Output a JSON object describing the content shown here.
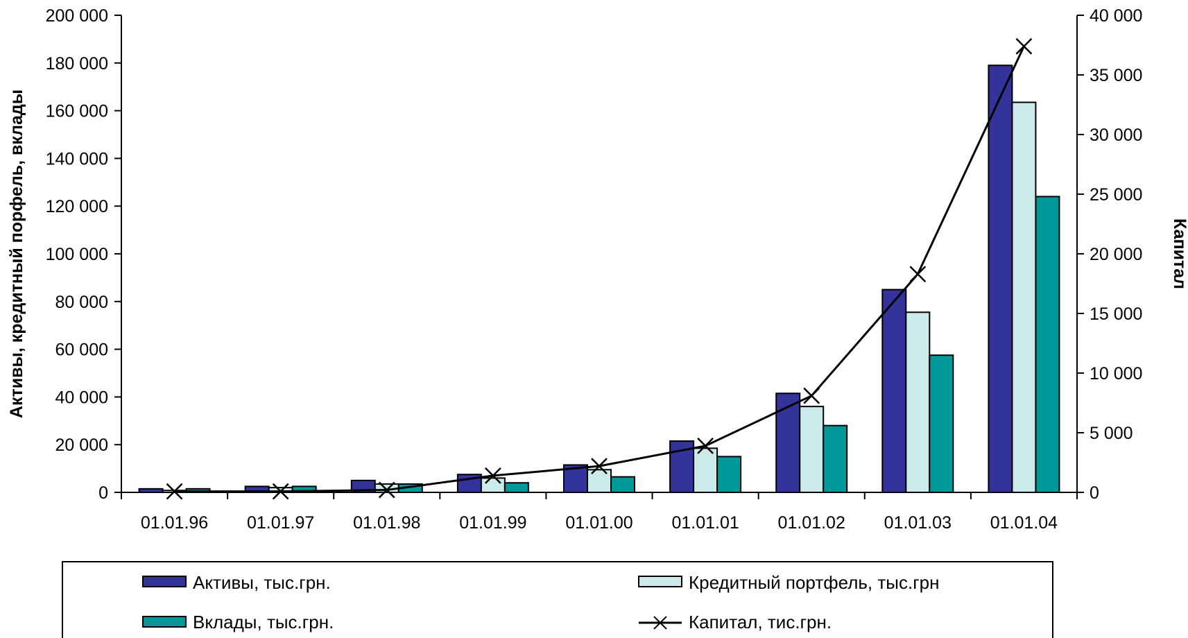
{
  "chart_data": {
    "type": "bar",
    "categories": [
      "01.01.96",
      "01.01.97",
      "01.01.98",
      "01.01.99",
      "01.01.00",
      "01.01.01",
      "01.01.02",
      "01.01.03",
      "01.01.04"
    ],
    "series": [
      {
        "name": "Активы, тыс.грн.",
        "type": "bar",
        "axis": "left",
        "values": [
          1500,
          2500,
          5000,
          7500,
          11500,
          21500,
          41500,
          85000,
          179000
        ]
      },
      {
        "name": "Кредитный портфель, тыс.грн",
        "type": "bar",
        "axis": "left",
        "values": [
          800,
          2000,
          3500,
          6000,
          9500,
          18500,
          36000,
          75500,
          163500
        ]
      },
      {
        "name": "Вклады, тыс.грн.",
        "type": "bar",
        "axis": "left",
        "values": [
          1500,
          2500,
          3500,
          4000,
          6500,
          15000,
          28000,
          57500,
          124000
        ]
      },
      {
        "name": "Капитал, тис.грн.",
        "type": "line",
        "axis": "right",
        "marker": "x",
        "values": [
          80,
          80,
          200,
          1400,
          2200,
          3900,
          8100,
          18300,
          37400
        ]
      }
    ],
    "ylabel": "Активы, кредитный порфель, вклады",
    "y2label": "Капитал",
    "ylim": [
      0,
      200000
    ],
    "y2lim": [
      0,
      40000
    ],
    "yticks": [
      "0",
      "20 000",
      "40 000",
      "60 000",
      "80 000",
      "100 000",
      "120 000",
      "140 000",
      "160 000",
      "180 000",
      "200 000"
    ],
    "y2ticks": [
      "0",
      "5 000",
      "10 000",
      "15 000",
      "20 000",
      "25 000",
      "30 000",
      "35 000",
      "40 000"
    ],
    "grid": false,
    "legend_position": "bottom",
    "colors": {
      "assets": "#333399",
      "loans": "#cceaea",
      "deposits": "#009999",
      "capital": "#000000",
      "bar_outline": "#000000"
    }
  }
}
